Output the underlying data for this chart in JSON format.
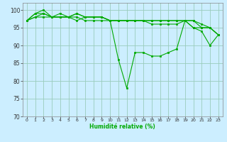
{
  "xlabel": "Humidité relative (%)",
  "background_color": "#cceeff",
  "grid_color": "#99ccbb",
  "line_color": "#00aa00",
  "marker_color": "#00aa00",
  "ylim": [
    70,
    102
  ],
  "xlim": [
    -0.5,
    23.5
  ],
  "yticks": [
    70,
    75,
    80,
    85,
    90,
    95,
    100
  ],
  "xticks": [
    0,
    1,
    2,
    3,
    4,
    5,
    6,
    7,
    8,
    9,
    10,
    11,
    12,
    13,
    14,
    15,
    16,
    17,
    18,
    19,
    20,
    21,
    22,
    23
  ],
  "series": [
    [
      97,
      98,
      98,
      98,
      98,
      98,
      97,
      98,
      98,
      98,
      97,
      86,
      78,
      88,
      88,
      87,
      87,
      88,
      89,
      97,
      95,
      94,
      90,
      93
    ],
    [
      97,
      99,
      99,
      98,
      99,
      98,
      99,
      98,
      98,
      98,
      97,
      97,
      97,
      97,
      97,
      97,
      97,
      97,
      97,
      97,
      97,
      96,
      95,
      93
    ],
    [
      97,
      99,
      100,
      98,
      98,
      98,
      99,
      98,
      98,
      98,
      97,
      97,
      97,
      97,
      97,
      97,
      97,
      97,
      97,
      97,
      97,
      95,
      95,
      93
    ],
    [
      97,
      98,
      99,
      98,
      98,
      98,
      98,
      97,
      97,
      97,
      97,
      97,
      97,
      97,
      97,
      96,
      96,
      96,
      96,
      97,
      95,
      95,
      95,
      93
    ]
  ],
  "figsize": [
    3.2,
    2.0
  ],
  "dpi": 100
}
